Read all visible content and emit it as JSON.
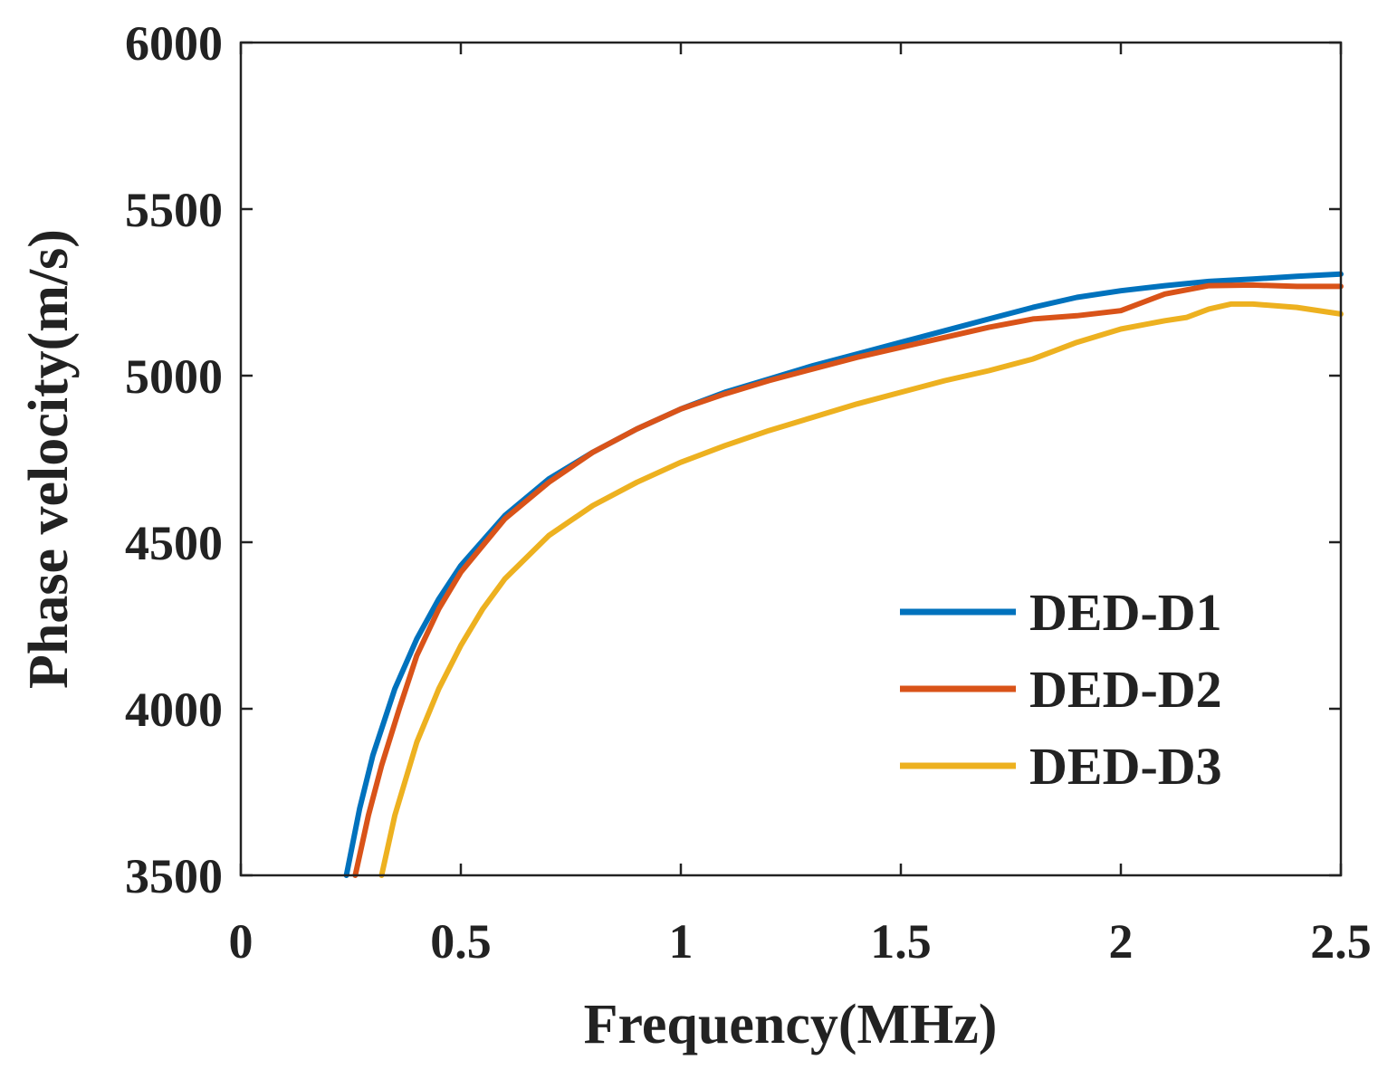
{
  "chart_data": {
    "type": "line",
    "title": "",
    "xlabel": "Frequency(MHz)",
    "ylabel": "Phase velocity(m/s)",
    "xlim": [
      0,
      2.5
    ],
    "ylim": [
      3500,
      6000
    ],
    "xticks": [
      0,
      0.5,
      1,
      1.5,
      2,
      2.5
    ],
    "xtick_labels": [
      "0",
      "0.5",
      "1",
      "1.5",
      "2",
      "2.5"
    ],
    "yticks": [
      3500,
      4000,
      4500,
      5000,
      5500,
      6000
    ],
    "ytick_labels": [
      "3500",
      "4000",
      "4500",
      "5000",
      "5500",
      "6000"
    ],
    "grid": false,
    "legend": "right",
    "series": [
      {
        "name": "DED-D1",
        "color": "#0072BD",
        "x": [
          0.24,
          0.27,
          0.3,
          0.35,
          0.4,
          0.45,
          0.5,
          0.6,
          0.7,
          0.8,
          0.9,
          1.0,
          1.1,
          1.2,
          1.3,
          1.4,
          1.5,
          1.6,
          1.7,
          1.8,
          1.9,
          2.0,
          2.1,
          2.2,
          2.3,
          2.4,
          2.5
        ],
        "y": [
          3500,
          3700,
          3860,
          4060,
          4210,
          4330,
          4430,
          4580,
          4690,
          4770,
          4840,
          4900,
          4950,
          4990,
          5030,
          5065,
          5100,
          5135,
          5170,
          5205,
          5235,
          5255,
          5270,
          5283,
          5290,
          5298,
          5305
        ]
      },
      {
        "name": "DED-D2",
        "color": "#D95319",
        "x": [
          0.26,
          0.29,
          0.32,
          0.36,
          0.4,
          0.45,
          0.5,
          0.6,
          0.7,
          0.8,
          0.9,
          1.0,
          1.1,
          1.2,
          1.3,
          1.4,
          1.5,
          1.6,
          1.7,
          1.8,
          1.9,
          2.0,
          2.05,
          2.1,
          2.2,
          2.3,
          2.4,
          2.5
        ],
        "y": [
          3500,
          3680,
          3830,
          4000,
          4160,
          4300,
          4410,
          4570,
          4680,
          4770,
          4840,
          4900,
          4945,
          4985,
          5020,
          5055,
          5085,
          5115,
          5145,
          5170,
          5180,
          5195,
          5220,
          5245,
          5270,
          5272,
          5268,
          5268
        ]
      },
      {
        "name": "DED-D3",
        "color": "#EDB120",
        "x": [
          0.32,
          0.35,
          0.4,
          0.45,
          0.5,
          0.55,
          0.6,
          0.7,
          0.8,
          0.9,
          1.0,
          1.1,
          1.2,
          1.3,
          1.4,
          1.5,
          1.6,
          1.7,
          1.8,
          1.85,
          1.9,
          2.0,
          2.1,
          2.15,
          2.2,
          2.25,
          2.3,
          2.4,
          2.5
        ],
        "y": [
          3500,
          3680,
          3900,
          4060,
          4190,
          4300,
          4390,
          4520,
          4610,
          4680,
          4740,
          4790,
          4835,
          4875,
          4915,
          4950,
          4985,
          5015,
          5050,
          5075,
          5100,
          5140,
          5165,
          5175,
          5200,
          5215,
          5215,
          5205,
          5185
        ]
      }
    ]
  }
}
